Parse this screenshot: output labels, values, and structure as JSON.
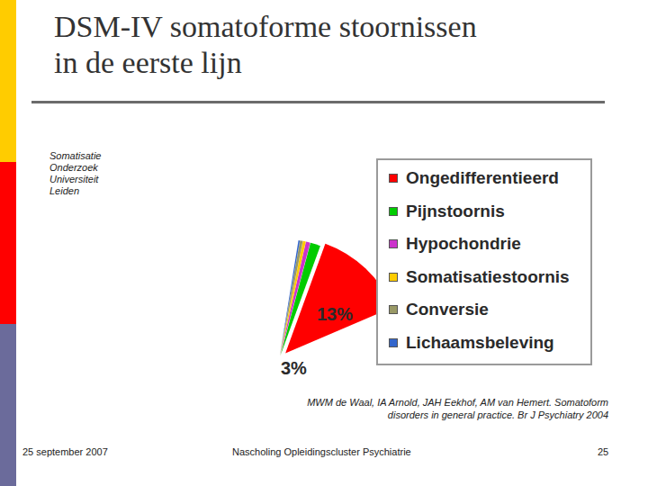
{
  "slide": {
    "title": [
      "DSM-IV somatoforme stoornissen",
      "in de eerste lijn"
    ],
    "side_note": [
      "Somatisatie",
      "Onderzoek",
      "Universiteit",
      "Leiden"
    ],
    "citation": [
      "MWM de Waal, IA Arnold, JAH Eekhof, AM van Hemert. Somatoform",
      "disorders in general practice. Br J Psychiatry 2004"
    ],
    "footer_left": "25 september 2007",
    "footer_center": "Nascholing Opleidingscluster Psychiatrie",
    "page_number": "25"
  },
  "chart_data": {
    "type": "pie",
    "categories": [
      "Ongedifferentieerd",
      "Pijnstoornis",
      "Hypochondrie",
      "Somatisatiestoornis",
      "Conversie",
      "Lichaamsbeleving"
    ],
    "values": [
      13,
      1.4,
      0.6,
      0.4,
      0.4,
      0.2
    ],
    "colors": [
      "#ff0000",
      "#00cc00",
      "#cc33cc",
      "#ffcc00",
      "#999966",
      "#3366cc"
    ],
    "annotations": [
      "13%",
      "3%"
    ]
  }
}
